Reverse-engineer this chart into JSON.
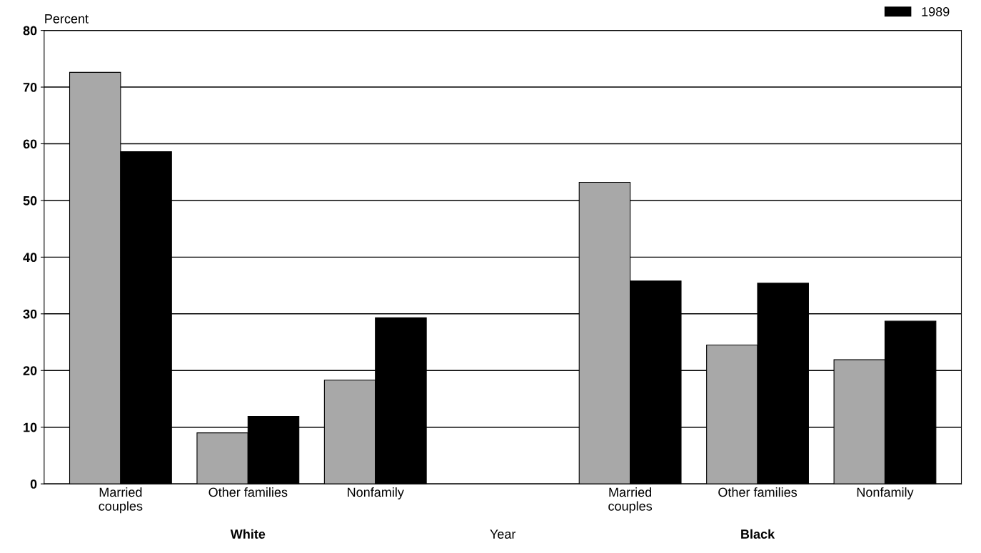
{
  "chart_data": {
    "type": "bar",
    "ylabel": "Percent",
    "xlabel": "Year",
    "categories": [
      "Married\ncouples",
      "Other families",
      "Nonfamily",
      null,
      "Married\ncouples",
      "Other families",
      "Nonfamily"
    ],
    "series": [
      {
        "color": "#a8a8a8",
        "values": [
          72.6,
          9.0,
          18.3,
          null,
          53.2,
          24.5,
          21.9
        ]
      },
      {
        "name": "1989",
        "color": "#000000",
        "values": [
          58.6,
          11.9,
          29.3,
          null,
          35.8,
          35.4,
          28.7
        ]
      }
    ],
    "annotations": [
      "White",
      "Black"
    ],
    "ylim": [
      0,
      80
    ],
    "yticks": [
      0,
      10,
      20,
      30,
      40,
      50,
      60,
      70,
      80
    ],
    "grid": "y",
    "legend": "top right"
  }
}
